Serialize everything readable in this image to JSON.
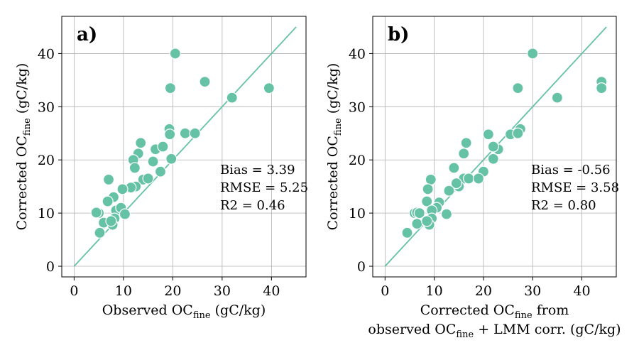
{
  "chart_data": [
    {
      "type": "scatter",
      "panel_label": "a)",
      "xlabel": {
        "main": "Observed OC",
        "sub": "fine",
        "tail": " (gC/kg)"
      },
      "ylabel": {
        "main": "Corrected OC",
        "sub": "fine",
        "tail": " (gC/kg)"
      },
      "xlim": [
        -2.5,
        47
      ],
      "ylim": [
        -2,
        47
      ],
      "xticks": [
        "0",
        "10",
        "20",
        "30",
        "40"
      ],
      "yticks": [
        "0",
        "10",
        "20",
        "30",
        "40"
      ],
      "grid": true,
      "one_to_one_line": [
        0,
        45
      ],
      "point_color": "#66c2a5",
      "stats": [
        "Bias = 3.39",
        "RMSE = 5.25",
        "R2 = 0.46"
      ],
      "x": [
        20.5,
        26.5,
        19.5,
        39.5,
        32.0,
        19.3,
        19.4,
        22.5,
        24.5,
        13.5,
        13.0,
        12.0,
        16.5,
        12.3,
        16.0,
        18.0,
        19.7,
        14.0,
        15.0,
        12.5,
        11.5,
        17.5,
        7.0,
        9.8,
        8.0,
        8.5,
        6.8,
        9.5,
        5.0,
        4.5,
        6.0,
        10.3,
        8.2,
        7.8,
        6.0,
        7.5,
        5.2
      ],
      "y": [
        40.0,
        34.7,
        33.5,
        33.5,
        31.7,
        25.8,
        24.8,
        25.0,
        25.0,
        23.2,
        21.2,
        20.0,
        22.0,
        18.5,
        19.7,
        22.5,
        20.2,
        16.3,
        16.5,
        15.0,
        14.8,
        17.8,
        16.3,
        14.5,
        13.0,
        10.5,
        12.2,
        11.0,
        10.0,
        10.1,
        8.0,
        9.8,
        9.0,
        7.8,
        8.2,
        8.5,
        6.3
      ]
    },
    {
      "type": "scatter",
      "panel_label": "b)",
      "xlabel": {
        "line1_main": "Corrected OC",
        "line1_sub": "fine",
        "line1_tail": " from",
        "line2_pre": "observed OC",
        "line2_sub": "fine",
        "line2_tail": " + LMM corr. (gC/kg)"
      },
      "ylabel": {
        "main": "Corrected OC",
        "sub": "fine",
        "tail": " (gC/kg)"
      },
      "xlim": [
        -2.5,
        47
      ],
      "ylim": [
        -2,
        47
      ],
      "xticks": [
        "0",
        "10",
        "20",
        "30",
        "40"
      ],
      "yticks": [
        "0",
        "10",
        "20",
        "30",
        "40"
      ],
      "grid": true,
      "one_to_one_line": [
        0,
        45
      ],
      "point_color": "#66c2a5",
      "stats": [
        "Bias = -0.56",
        "RMSE = 3.58",
        "R2 = 0.80"
      ],
      "x": [
        30.0,
        44.0,
        44.0,
        27.0,
        35.0,
        27.5,
        25.5,
        27.0,
        21.0,
        16.5,
        16.0,
        23.0,
        22.0,
        14.0,
        16.0,
        20.0,
        22.0,
        15.0,
        14.5,
        17.0,
        13.0,
        19.0,
        9.3,
        8.7,
        11.0,
        10.5,
        8.5,
        9.5,
        6.0,
        6.5,
        7.0,
        12.5,
        9.5,
        9.0,
        6.5,
        8.5,
        4.5
      ],
      "y": [
        40.0,
        34.7,
        33.5,
        33.5,
        31.7,
        25.8,
        24.8,
        25.0,
        24.8,
        23.2,
        21.2,
        22.0,
        22.5,
        18.5,
        16.5,
        17.8,
        20.2,
        15.0,
        15.6,
        16.5,
        14.2,
        16.5,
        16.3,
        14.5,
        12.0,
        11.0,
        12.2,
        10.5,
        10.0,
        10.1,
        10.0,
        9.8,
        9.0,
        7.8,
        8.0,
        8.5,
        6.3
      ]
    }
  ]
}
